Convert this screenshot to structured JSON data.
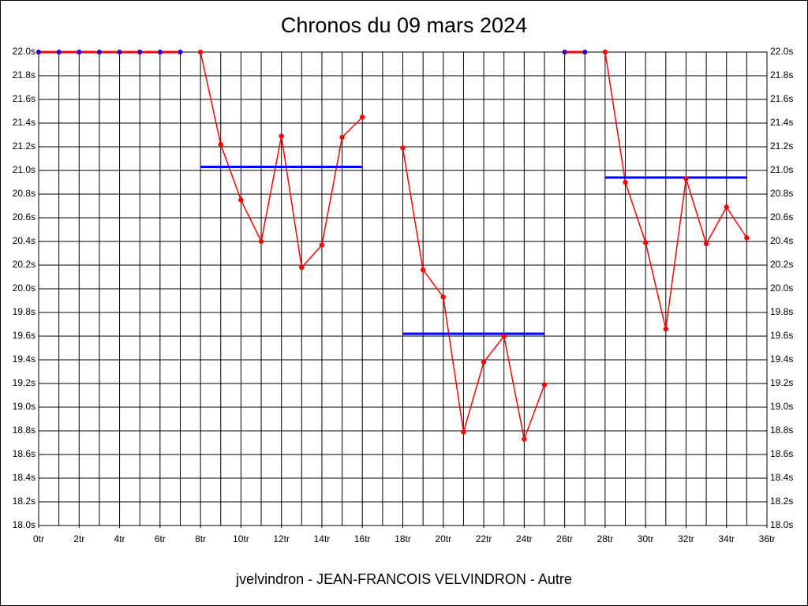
{
  "chart_data": {
    "type": "line",
    "title": "Chronos du 09 mars 2024",
    "footer": "jvelvindron - JEAN-FRANCOIS VELVINDRON - Autre",
    "x": [
      0,
      1,
      2,
      3,
      4,
      5,
      6,
      7,
      8,
      9,
      10,
      11,
      12,
      13,
      14,
      15,
      16,
      17,
      18,
      19,
      20,
      21,
      22,
      23,
      24,
      25,
      26,
      27,
      28,
      29,
      30,
      31,
      32,
      33,
      34,
      35
    ],
    "series": [
      {
        "color": "#ff0000",
        "marker_color": "#0000ff",
        "line_width": 3,
        "values": [
          22.0,
          22.0,
          22.0,
          22.0,
          22.0,
          22.0,
          22.0,
          22.0,
          null,
          null,
          null,
          null,
          null,
          null,
          null,
          null,
          null,
          null,
          null,
          null,
          null,
          null,
          null,
          null,
          null,
          null,
          22.0,
          22.0,
          null,
          null,
          null,
          null,
          null,
          null,
          null,
          null
        ]
      },
      {
        "color": "#ff0000",
        "marker_color": "#ff0000",
        "line_width": 1.5,
        "values": [
          null,
          null,
          null,
          null,
          null,
          null,
          null,
          null,
          22.0,
          21.22,
          20.75,
          20.4,
          21.29,
          20.18,
          20.37,
          21.28,
          21.45,
          null,
          21.19,
          20.16,
          19.93,
          18.79,
          19.38,
          19.6,
          18.73,
          19.19,
          null,
          null,
          22.0,
          20.9,
          20.39,
          19.66,
          20.93,
          20.38,
          20.69,
          20.43
        ]
      }
    ],
    "averages": {
      "color": "#0000ff",
      "segments": [
        {
          "x": [
            8,
            16
          ],
          "value": 21.03
        },
        {
          "x": [
            18,
            25
          ],
          "value": 19.62
        },
        {
          "x": [
            28,
            35
          ],
          "value": 20.94
        }
      ]
    },
    "xlim": [
      0,
      36
    ],
    "xticks": [
      {
        "value": 0,
        "label": "0tr"
      },
      {
        "value": 2,
        "label": "2tr"
      },
      {
        "value": 4,
        "label": "4tr"
      },
      {
        "value": 6,
        "label": "6tr"
      },
      {
        "value": 8,
        "label": "8tr"
      },
      {
        "value": 10,
        "label": "10tr"
      },
      {
        "value": 12,
        "label": "12tr"
      },
      {
        "value": 14,
        "label": "14tr"
      },
      {
        "value": 16,
        "label": "16tr"
      },
      {
        "value": 18,
        "label": "18tr"
      },
      {
        "value": 20,
        "label": "20tr"
      },
      {
        "value": 22,
        "label": "22tr"
      },
      {
        "value": 24,
        "label": "24tr"
      },
      {
        "value": 26,
        "label": "26tr"
      },
      {
        "value": 28,
        "label": "28tr"
      },
      {
        "value": 30,
        "label": "30tr"
      },
      {
        "value": 32,
        "label": "32tr"
      },
      {
        "value": 34,
        "label": "34tr"
      },
      {
        "value": 36,
        "label": "36tr"
      }
    ],
    "x_grid_step": 1,
    "ylim": [
      18.0,
      22.0
    ],
    "yticks": [
      {
        "value": 18.0,
        "label": "18.0s"
      },
      {
        "value": 18.2,
        "label": "18.2s"
      },
      {
        "value": 18.4,
        "label": "18.4s"
      },
      {
        "value": 18.6,
        "label": "18.6s"
      },
      {
        "value": 18.8,
        "label": "18.8s"
      },
      {
        "value": 19.0,
        "label": "19.0s"
      },
      {
        "value": 19.2,
        "label": "19.2s"
      },
      {
        "value": 19.4,
        "label": "19.4s"
      },
      {
        "value": 19.6,
        "label": "19.6s"
      },
      {
        "value": 19.8,
        "label": "19.8s"
      },
      {
        "value": 20.0,
        "label": "20.0s"
      },
      {
        "value": 20.2,
        "label": "20.2s"
      },
      {
        "value": 20.4,
        "label": "20.4s"
      },
      {
        "value": 20.6,
        "label": "20.6s"
      },
      {
        "value": 20.8,
        "label": "20.8s"
      },
      {
        "value": 21.0,
        "label": "21.0s"
      },
      {
        "value": 21.2,
        "label": "21.2s"
      },
      {
        "value": 21.4,
        "label": "21.4s"
      },
      {
        "value": 21.6,
        "label": "21.6s"
      },
      {
        "value": 21.8,
        "label": "21.8s"
      },
      {
        "value": 22.0,
        "label": "22.0s"
      }
    ],
    "y2lim": [
      18.0,
      22.0
    ],
    "y2ticks": [
      {
        "value": 18.0,
        "label": "18.0s"
      },
      {
        "value": 18.2,
        "label": "18.2s"
      },
      {
        "value": 18.4,
        "label": "18.4s"
      },
      {
        "value": 18.6,
        "label": "18.6s"
      },
      {
        "value": 18.8,
        "label": "18.8s"
      },
      {
        "value": 19.0,
        "label": "19.0s"
      },
      {
        "value": 19.2,
        "label": "19.2s"
      },
      {
        "value": 19.4,
        "label": "19.4s"
      },
      {
        "value": 19.6,
        "label": "19.6s"
      },
      {
        "value": 19.8,
        "label": "19.8s"
      },
      {
        "value": 20.0,
        "label": "20.0s"
      },
      {
        "value": 20.2,
        "label": "20.2s"
      },
      {
        "value": 20.4,
        "label": "20.4s"
      },
      {
        "value": 20.6,
        "label": "20.6s"
      },
      {
        "value": 20.8,
        "label": "20.8s"
      },
      {
        "value": 21.0,
        "label": "21.0s"
      },
      {
        "value": 21.2,
        "label": "21.2s"
      },
      {
        "value": 21.4,
        "label": "21.4s"
      },
      {
        "value": 21.6,
        "label": "21.6s"
      },
      {
        "value": 21.8,
        "label": "21.8s"
      },
      {
        "value": 22.0,
        "label": "22.0s"
      }
    ],
    "grid": true
  }
}
